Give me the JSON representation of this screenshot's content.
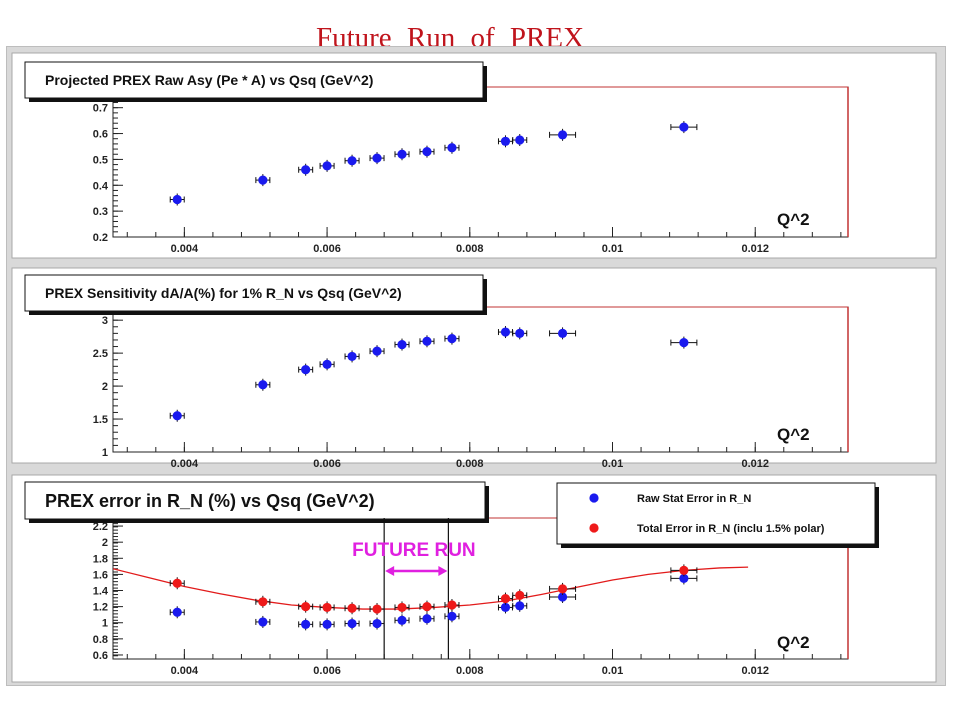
{
  "page": {
    "title": "Future Run   of   PREX",
    "colors": {
      "title": "#c0141c",
      "raw": "#1a1aee",
      "total": "#ee1a1a",
      "fit": "#e21b1b",
      "annotation": "#e020e0"
    }
  },
  "chart_data": [
    {
      "type": "scatter",
      "title": "Projected PREX Raw Asy (Pe * A) vs Qsq (GeV^2)",
      "xlabel": "Q^2",
      "ylabel": "",
      "xlim": [
        0.003,
        0.0133
      ],
      "ylim": [
        0.2,
        0.78
      ],
      "xticks": [
        "0.004",
        "0.006",
        "0.008",
        "0.01",
        "0.012"
      ],
      "yticks": [
        "0.2",
        "0.3",
        "0.4",
        "0.5",
        "0.6",
        "0.7"
      ],
      "grid": false,
      "series": [
        {
          "x": [
            0.0039,
            0.0051,
            0.0057,
            0.006,
            0.00635,
            0.0067,
            0.00705,
            0.0074,
            0.00775,
            0.0085,
            0.0087,
            0.0093,
            0.011
          ],
          "y": [
            0.345,
            0.42,
            0.46,
            0.475,
            0.495,
            0.505,
            0.52,
            0.53,
            0.545,
            0.57,
            0.575,
            0.595,
            0.625
          ]
        }
      ]
    },
    {
      "type": "scatter",
      "title": "PREX Sensitivity dA/A(%) for 1% R_N vs Qsq (GeV^2)",
      "xlabel": "Q^2",
      "ylabel": "",
      "xlim": [
        0.003,
        0.0133
      ],
      "ylim": [
        1,
        3.2
      ],
      "xticks": [
        "0.004",
        "0.006",
        "0.008",
        "0.01",
        "0.012"
      ],
      "yticks": [
        "1",
        "1.5",
        "2",
        "2.5",
        "3"
      ],
      "grid": false,
      "series": [
        {
          "x": [
            0.0039,
            0.0051,
            0.0057,
            0.006,
            0.00635,
            0.0067,
            0.00705,
            0.0074,
            0.00775,
            0.0085,
            0.0087,
            0.0093,
            0.011
          ],
          "y": [
            1.55,
            2.02,
            2.25,
            2.33,
            2.45,
            2.53,
            2.63,
            2.68,
            2.72,
            2.82,
            2.8,
            2.8,
            2.66
          ]
        }
      ]
    },
    {
      "type": "scatter",
      "title": "PREX error in R_N (%) vs Qsq (GeV^2)",
      "xlabel": "Q^2",
      "ylabel": "",
      "xlim": [
        0.003,
        0.0133
      ],
      "ylim": [
        0.55,
        2.3
      ],
      "xticks": [
        "0.004",
        "0.006",
        "0.008",
        "0.01",
        "0.012"
      ],
      "yticks": [
        "0.6",
        "0.8",
        "1",
        "1.2",
        "1.4",
        "1.6",
        "1.8",
        "2",
        "2.2"
      ],
      "grid": false,
      "legend": "top-right",
      "annotation": {
        "text": "FUTURE RUN",
        "x_range": [
          0.0068,
          0.0077
        ]
      },
      "series": [
        {
          "name": "Raw Stat Error in R_N",
          "x": [
            0.0039,
            0.0051,
            0.0057,
            0.006,
            0.00635,
            0.0067,
            0.00705,
            0.0074,
            0.00775,
            0.0085,
            0.0087,
            0.0093,
            0.011
          ],
          "y": [
            1.13,
            1.01,
            0.98,
            0.98,
            0.99,
            0.99,
            1.03,
            1.05,
            1.08,
            1.19,
            1.21,
            1.32,
            1.55
          ]
        },
        {
          "name": "Total Error in R_N (inclu 1.5% polar)",
          "x": [
            0.0039,
            0.0051,
            0.0057,
            0.006,
            0.00635,
            0.0067,
            0.00705,
            0.0074,
            0.00775,
            0.0085,
            0.0087,
            0.0093,
            0.011
          ],
          "y": [
            1.49,
            1.26,
            1.2,
            1.19,
            1.18,
            1.17,
            1.19,
            1.2,
            1.22,
            1.3,
            1.34,
            1.42,
            1.65
          ]
        }
      ],
      "fit_curve": {
        "x": [
          0.003,
          0.0035,
          0.004,
          0.0045,
          0.005,
          0.0055,
          0.006,
          0.0065,
          0.007,
          0.0075,
          0.008,
          0.0085,
          0.009,
          0.0095,
          0.01,
          0.0105,
          0.011,
          0.0115,
          0.0119
        ],
        "y": [
          1.67,
          1.56,
          1.45,
          1.36,
          1.28,
          1.22,
          1.19,
          1.17,
          1.17,
          1.19,
          1.22,
          1.27,
          1.35,
          1.44,
          1.53,
          1.6,
          1.65,
          1.68,
          1.69
        ]
      }
    }
  ]
}
